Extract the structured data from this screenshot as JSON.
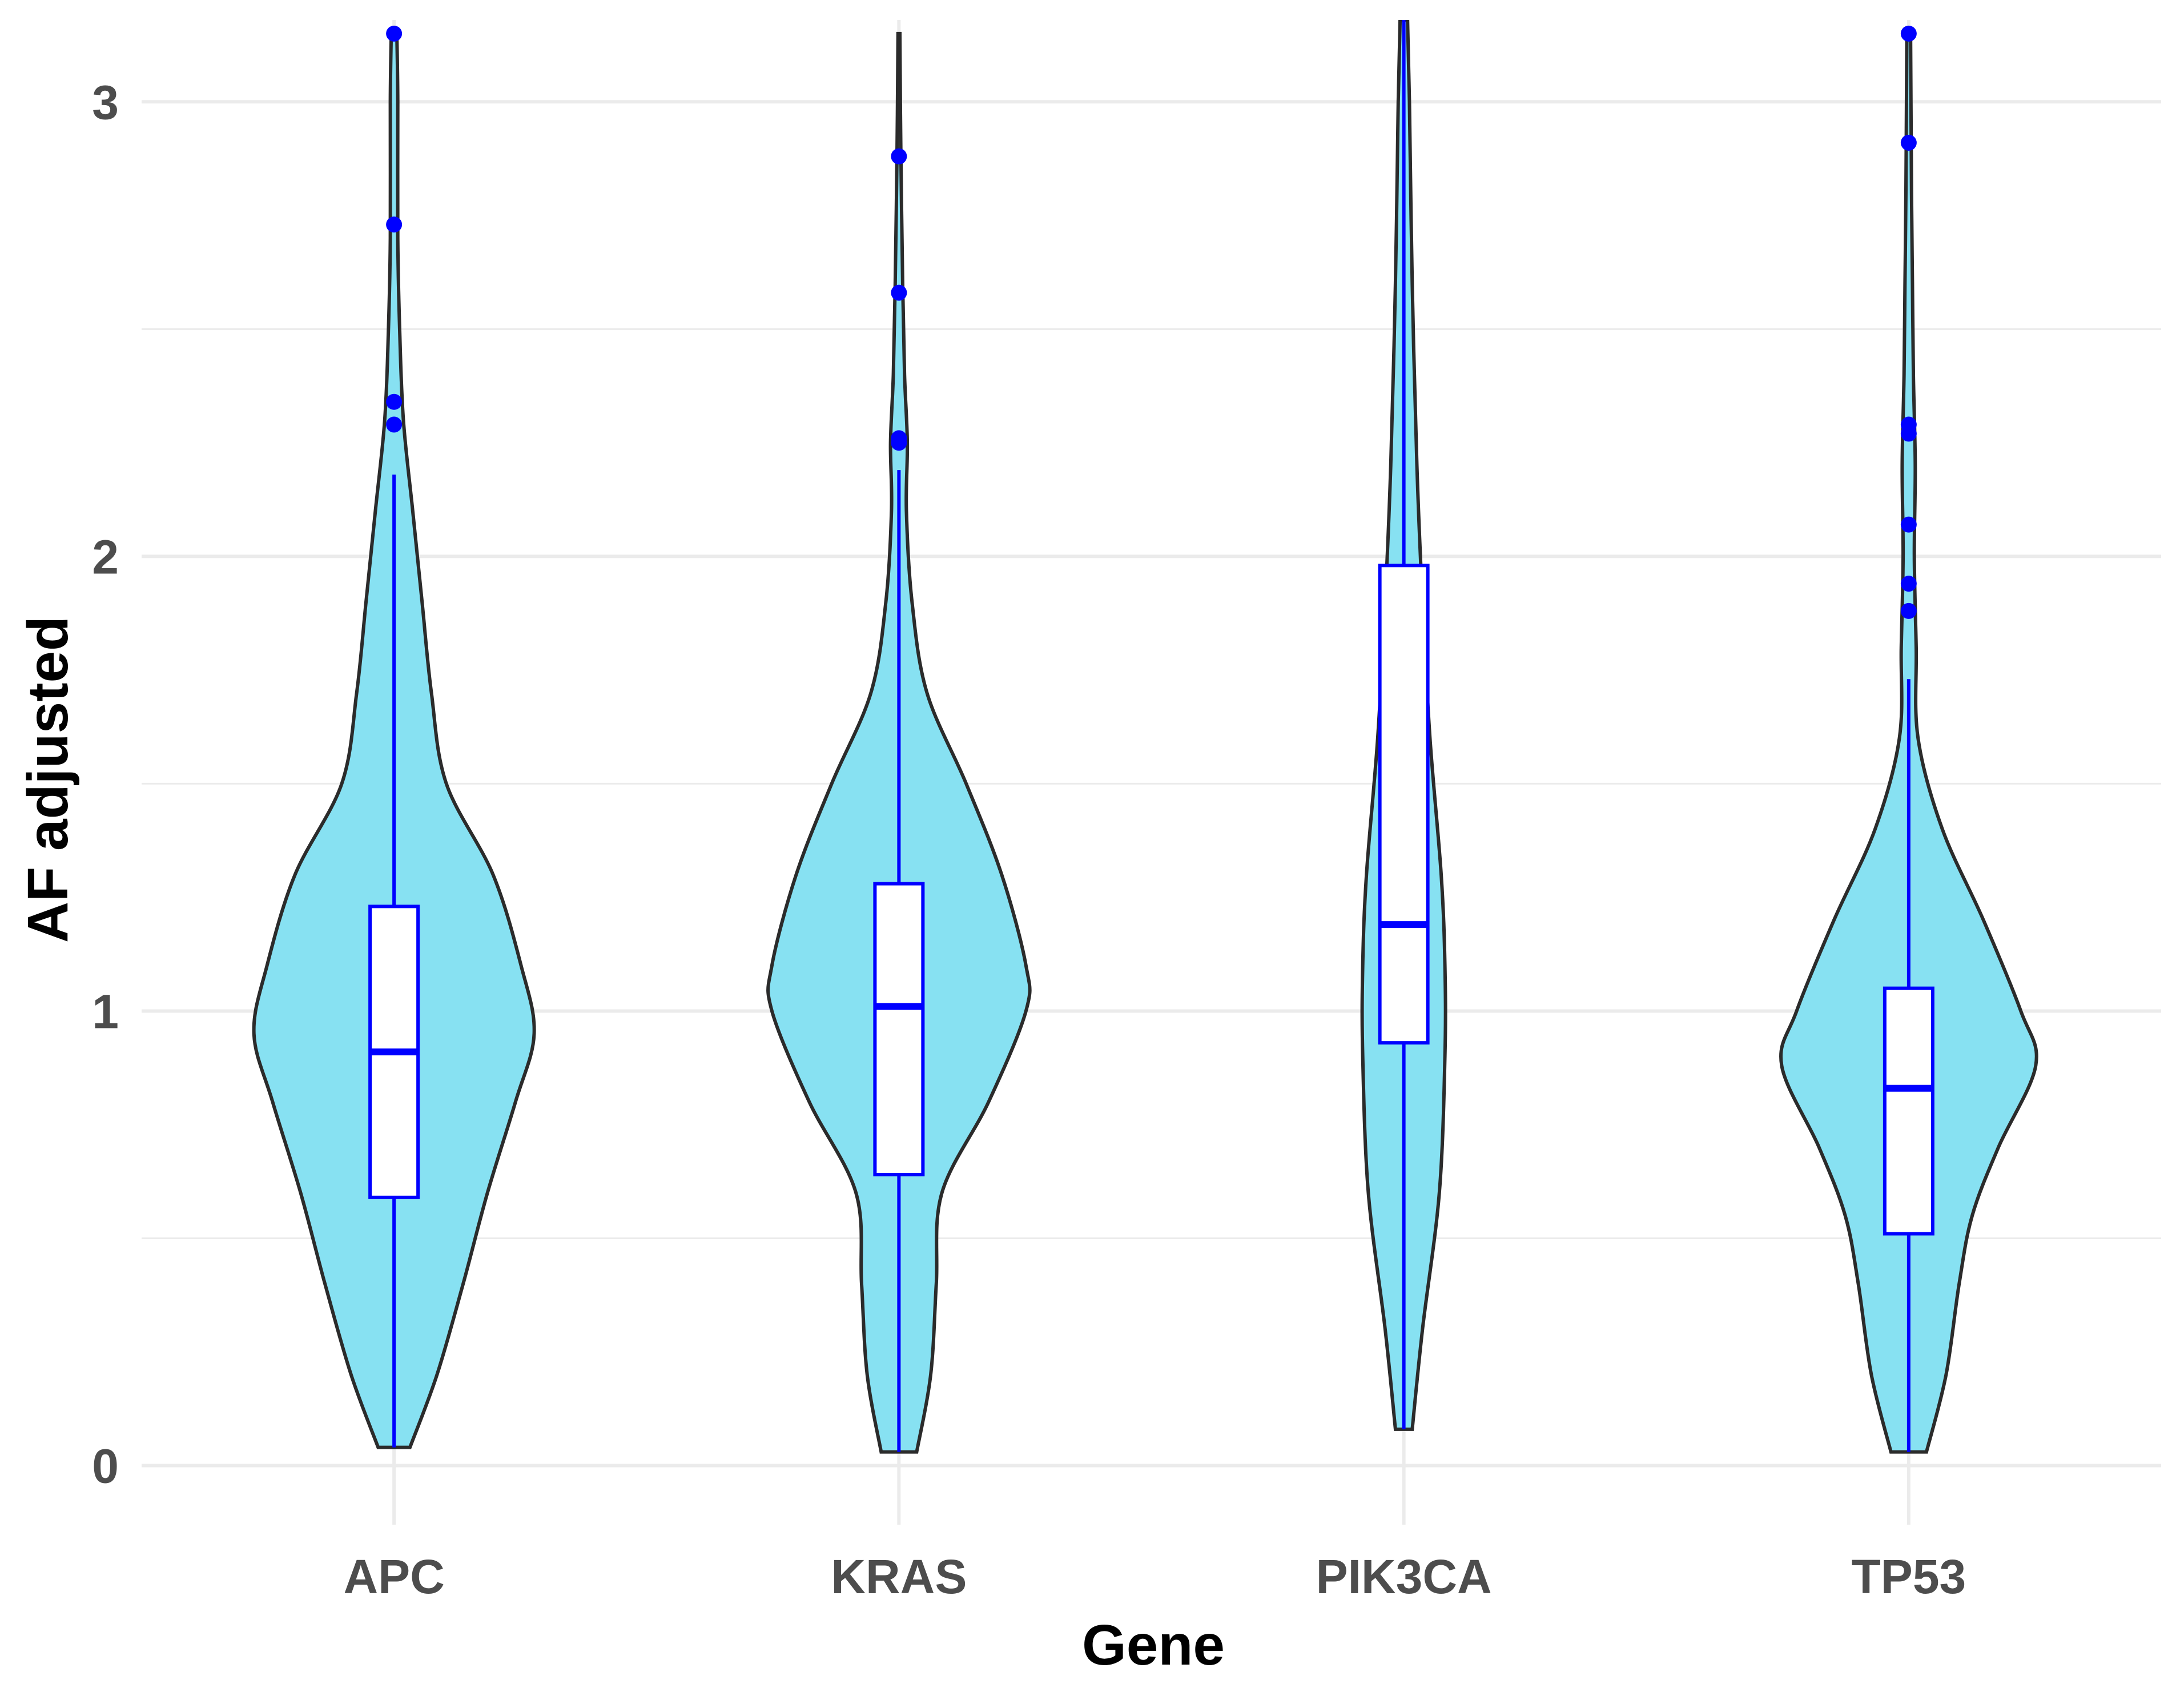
{
  "chart_data": {
    "type": "violin",
    "title": "",
    "xlabel": "Gene",
    "ylabel": "AF adjusted",
    "ylim": [
      -0.13,
      3.18
    ],
    "yticks": [
      0,
      1,
      2,
      3
    ],
    "ytick_labels": [
      "0",
      "1",
      "2",
      "3"
    ],
    "grid": true,
    "legend": "none",
    "categories": [
      "APC",
      "KRAS",
      "PIK3CA",
      "TP53"
    ],
    "colors": {
      "violin_fill": "#87e1f2",
      "violin_stroke": "#2b2b2b",
      "box_stroke": "#0000ff",
      "box_fill": "#ffffff",
      "outlier": "#0000ff",
      "grid": "#ebebeb"
    },
    "groups": [
      {
        "name": "APC",
        "box": {
          "q1": 0.59,
          "median": 0.91,
          "q3": 1.23,
          "whisker_low": 0.04,
          "whisker_high": 2.18
        },
        "outliers": [
          3.15,
          2.73,
          2.34,
          2.29
        ],
        "density": [
          [
            0.04,
            0.085
          ],
          [
            0.2,
            0.23
          ],
          [
            0.4,
            0.37
          ],
          [
            0.6,
            0.5
          ],
          [
            0.8,
            0.65
          ],
          [
            0.95,
            0.75
          ],
          [
            1.1,
            0.68
          ],
          [
            1.3,
            0.53
          ],
          [
            1.5,
            0.28
          ],
          [
            1.7,
            0.2
          ],
          [
            1.9,
            0.15
          ],
          [
            2.1,
            0.1
          ],
          [
            2.3,
            0.05
          ],
          [
            2.5,
            0.03
          ],
          [
            2.7,
            0.02
          ],
          [
            3.0,
            0.02
          ],
          [
            3.15,
            0.015
          ]
        ]
      },
      {
        "name": "KRAS",
        "box": {
          "q1": 0.64,
          "median": 1.01,
          "q3": 1.28,
          "whisker_low": 0.03,
          "whisker_high": 2.19
        },
        "outliers": [
          2.88,
          2.58,
          2.26,
          2.25
        ],
        "density": [
          [
            0.03,
            0.095
          ],
          [
            0.2,
            0.17
          ],
          [
            0.4,
            0.2
          ],
          [
            0.6,
            0.23
          ],
          [
            0.8,
            0.48
          ],
          [
            1.0,
            0.68
          ],
          [
            1.1,
            0.68
          ],
          [
            1.3,
            0.55
          ],
          [
            1.5,
            0.36
          ],
          [
            1.7,
            0.15
          ],
          [
            1.9,
            0.07
          ],
          [
            2.1,
            0.04
          ],
          [
            2.25,
            0.045
          ],
          [
            2.4,
            0.03
          ],
          [
            2.6,
            0.02
          ],
          [
            2.9,
            0.01
          ],
          [
            3.15,
            0.005
          ]
        ]
      },
      {
        "name": "PIK3CA",
        "box": {
          "q1": 0.93,
          "median": 1.19,
          "q3": 1.98,
          "whisker_low": 0.08,
          "whisker_high": 3.18
        },
        "outliers": [],
        "density": [
          [
            0.08,
            0.045
          ],
          [
            0.3,
            0.1
          ],
          [
            0.6,
            0.19
          ],
          [
            0.9,
            0.22
          ],
          [
            1.1,
            0.22
          ],
          [
            1.3,
            0.2
          ],
          [
            1.6,
            0.14
          ],
          [
            1.9,
            0.1
          ],
          [
            2.2,
            0.07
          ],
          [
            2.6,
            0.045
          ],
          [
            3.0,
            0.03
          ],
          [
            3.18,
            0.02
          ]
        ]
      },
      {
        "name": "TP53",
        "box": {
          "q1": 0.51,
          "median": 0.83,
          "q3": 1.05,
          "whisker_low": 0.03,
          "whisker_high": 1.73
        },
        "outliers": [
          3.15,
          2.91,
          2.29,
          2.27,
          2.07,
          1.94,
          1.88
        ],
        "density": [
          [
            0.03,
            0.095
          ],
          [
            0.2,
            0.2
          ],
          [
            0.4,
            0.27
          ],
          [
            0.55,
            0.34
          ],
          [
            0.7,
            0.48
          ],
          [
            0.88,
            0.68
          ],
          [
            1.0,
            0.6
          ],
          [
            1.2,
            0.4
          ],
          [
            1.4,
            0.18
          ],
          [
            1.6,
            0.05
          ],
          [
            1.8,
            0.04
          ],
          [
            2.0,
            0.03
          ],
          [
            2.2,
            0.035
          ],
          [
            2.4,
            0.025
          ],
          [
            2.6,
            0.02
          ],
          [
            2.8,
            0.015
          ],
          [
            3.15,
            0.01
          ]
        ]
      }
    ]
  }
}
